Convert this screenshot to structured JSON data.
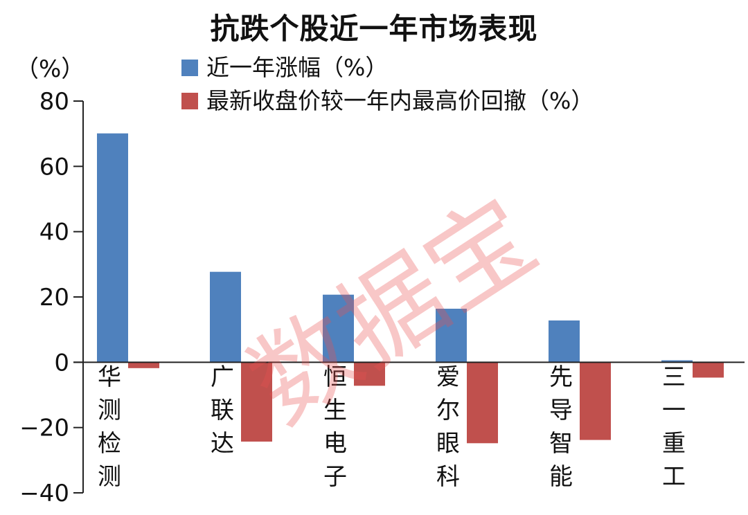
{
  "chart_data": {
    "type": "bar",
    "title": "抗跌个股近一年市场表现",
    "ylabel": "（%）",
    "xlabel": "",
    "ylim": [
      -40,
      80
    ],
    "yticks": [
      80,
      60,
      40,
      20,
      0,
      -20,
      -40
    ],
    "grid": false,
    "legend_position": "top",
    "categories": [
      "华测检测",
      "广联达",
      "恒生电子",
      "爱尔眼科",
      "先导智能",
      "三一重工"
    ],
    "series": [
      {
        "name": "近一年涨幅（%）",
        "color": "#4f81bd",
        "values": [
          70.1,
          27.7,
          20.7,
          16.4,
          12.8,
          0.6
        ]
      },
      {
        "name": "最新收盘价较一年内最高价回撤（%）",
        "color": "#c0504d",
        "values": [
          -1.8,
          -24.3,
          -7.2,
          -24.8,
          -23.8,
          -4.7
        ]
      }
    ]
  },
  "watermark": "数据宝"
}
